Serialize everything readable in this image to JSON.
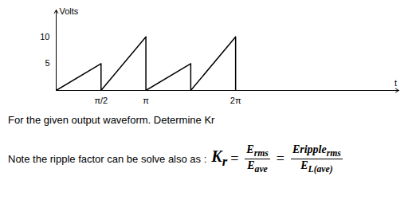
{
  "chart_data": {
    "type": "line",
    "y_label": "Volts",
    "x_label": "t",
    "x": [
      0,
      1.5708,
      1.5708,
      3.1416,
      3.1416,
      4.7124,
      4.7124,
      6.2832,
      6.2832
    ],
    "values": [
      0,
      5,
      0,
      10,
      0,
      5,
      0,
      10,
      0
    ],
    "color": "#000000",
    "xlim": [
      0,
      12
    ],
    "ylim": [
      0,
      15
    ],
    "xticks": [
      {
        "value": 1.5708,
        "label": "π/2"
      },
      {
        "value": 3.1416,
        "label": "π"
      },
      {
        "value": 6.2832,
        "label": "2π"
      }
    ],
    "yticks": [
      5,
      10
    ],
    "grid": false
  },
  "question": "For the given output waveform. Determine Kr",
  "note": {
    "text": "Note the ripple factor can be solve also as :",
    "lhs": {
      "base": "K",
      "sub": "r"
    },
    "relation": "=",
    "fractions": [
      {
        "num": {
          "base": "E",
          "sub": "rms"
        },
        "den": {
          "base": "E",
          "sub": "ave"
        }
      },
      {
        "num": {
          "base": "Eripple",
          "sub": "rms"
        },
        "den": {
          "base": "E",
          "sub": "L(ave)"
        }
      }
    ]
  }
}
